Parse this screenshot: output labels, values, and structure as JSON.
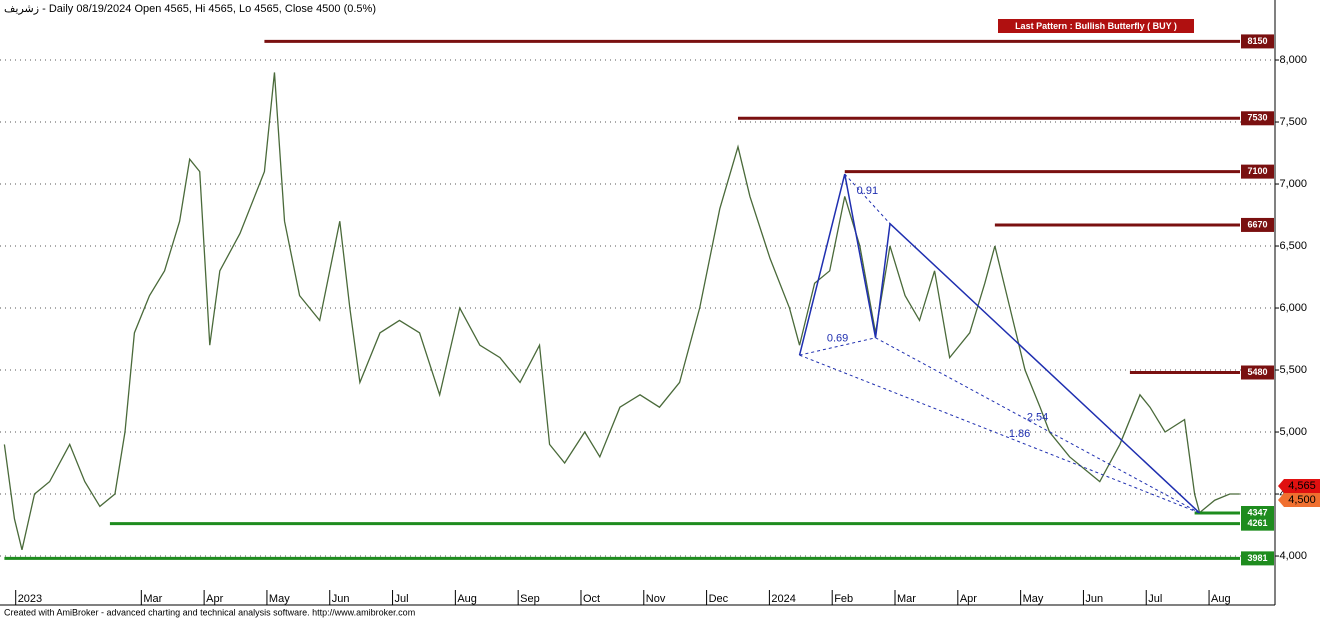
{
  "chart_data": {
    "type": "line",
    "title": "زشریف - Daily 08/19/2024 Open 4565, Hi 4565, Lo 4565, Close 4500 (0.5%)",
    "pattern_label": "Last Pattern : Bullish Butterfly ( BUY )",
    "footer": "Created with AmiBroker - advanced charting and technical analysis software. http://www.amibroker.com",
    "xlim": [
      -0.25,
      20.05
    ],
    "ylim": [
      3726,
      8484
    ],
    "xticks": [
      {
        "value": 0,
        "label": "2023"
      },
      {
        "value": 2,
        "label": "Mar"
      },
      {
        "value": 3,
        "label": "Apr"
      },
      {
        "value": 4,
        "label": "May"
      },
      {
        "value": 5,
        "label": "Jun"
      },
      {
        "value": 6,
        "label": "Jul"
      },
      {
        "value": 7,
        "label": "Aug"
      },
      {
        "value": 8,
        "label": "Sep"
      },
      {
        "value": 9,
        "label": "Oct"
      },
      {
        "value": 10,
        "label": "Nov"
      },
      {
        "value": 11,
        "label": "Dec"
      },
      {
        "value": 12,
        "label": "2024"
      },
      {
        "value": 13,
        "label": "Feb"
      },
      {
        "value": 14,
        "label": "Mar"
      },
      {
        "value": 15,
        "label": "Apr"
      },
      {
        "value": 16,
        "label": "May"
      },
      {
        "value": 17,
        "label": "Jun"
      },
      {
        "value": 18,
        "label": "Jul"
      },
      {
        "value": 19,
        "label": "Aug"
      }
    ],
    "yticks": [
      {
        "value": 4000,
        "label": "4,000"
      },
      {
        "value": 4500,
        "label": "4,500"
      },
      {
        "value": 5000,
        "label": "5,000"
      },
      {
        "value": 5500,
        "label": "5,500"
      },
      {
        "value": 6000,
        "label": "6,000"
      },
      {
        "value": 6500,
        "label": "6,500"
      },
      {
        "value": 7000,
        "label": "7,000"
      },
      {
        "value": 7500,
        "label": "7,500"
      },
      {
        "value": 8000,
        "label": "8,000"
      }
    ],
    "grid": true,
    "series": [
      {
        "color": "#4a6a3a",
        "x": [
          -0.18,
          -0.02,
          0.1,
          0.3,
          0.54,
          0.86,
          1.1,
          1.34,
          1.58,
          1.74,
          1.89,
          2.13,
          2.37,
          2.61,
          2.77,
          2.93,
          3.09,
          3.25,
          3.57,
          3.96,
          4.12,
          4.28,
          4.52,
          4.84,
          5.16,
          5.32,
          5.48,
          5.8,
          6.11,
          6.43,
          6.75,
          7.07,
          7.39,
          7.71,
          8.03,
          8.34,
          8.5,
          8.74,
          9.06,
          9.3,
          9.62,
          9.94,
          10.25,
          10.57,
          10.89,
          11.21,
          11.5,
          11.69,
          12.01,
          12.32,
          12.48,
          12.72,
          12.96,
          13.2,
          13.44,
          13.69,
          13.92,
          14.16,
          14.39,
          14.63,
          14.87,
          15.19,
          15.43,
          15.59,
          15.83,
          16.07,
          16.31,
          16.46,
          16.78,
          17.02,
          17.26,
          17.58,
          17.9,
          18.06,
          18.3,
          18.61,
          18.77,
          18.85,
          19.09,
          19.33,
          19.49
        ],
        "values": [
          4900,
          4300,
          4050,
          4500,
          4600,
          4900,
          4600,
          4400,
          4500,
          5000,
          5800,
          6100,
          6300,
          6700,
          7200,
          7100,
          5700,
          6300,
          6600,
          7100,
          7900,
          6700,
          6100,
          5900,
          6700,
          6000,
          5400,
          5800,
          5900,
          5800,
          5300,
          6000,
          5700,
          5600,
          5400,
          5700,
          4900,
          4750,
          5000,
          4800,
          5200,
          5300,
          5200,
          5400,
          6000,
          6800,
          7300,
          6900,
          6400,
          6000,
          5700,
          6200,
          6300,
          6900,
          6500,
          5800,
          6500,
          6100,
          5900,
          6300,
          5600,
          5800,
          6200,
          6500,
          6000,
          5500,
          5200,
          5000,
          4800,
          4700,
          4600,
          4900,
          5300,
          5200,
          5000,
          5100,
          4500,
          4350,
          4450,
          4500,
          4500
        ]
      }
    ],
    "levels": [
      {
        "value": 8150,
        "start": 3.96,
        "color": "#7a1010"
      },
      {
        "value": 7530,
        "start": 11.5,
        "color": "#7a1010"
      },
      {
        "value": 7100,
        "start": 13.2,
        "color": "#7a1010"
      },
      {
        "value": 6670,
        "start": 15.59,
        "color": "#7a1010"
      },
      {
        "value": 5480,
        "start": 17.74,
        "color": "#7a1010"
      },
      {
        "value": 4347,
        "start": 18.77,
        "color": "#1e8c1e"
      },
      {
        "value": 4261,
        "start": 1.5,
        "color": "#1e8c1e"
      },
      {
        "value": 3981,
        "start": -0.18,
        "color": "#1e8c1e"
      }
    ],
    "pattern": {
      "color": "#1f2fb0",
      "x": [
        12.48,
        13.2,
        13.69,
        13.92,
        18.85
      ],
      "values": [
        5620,
        7080,
        5760,
        6680,
        4347
      ],
      "ratios": [
        "0.69",
        "0.91",
        "2.54",
        "1.86"
      ]
    },
    "price_tags": [
      {
        "value": 4565,
        "label": "4,565",
        "color": "#e01010"
      },
      {
        "value": 4500,
        "label": "4,500",
        "color": "#f07030"
      }
    ]
  }
}
